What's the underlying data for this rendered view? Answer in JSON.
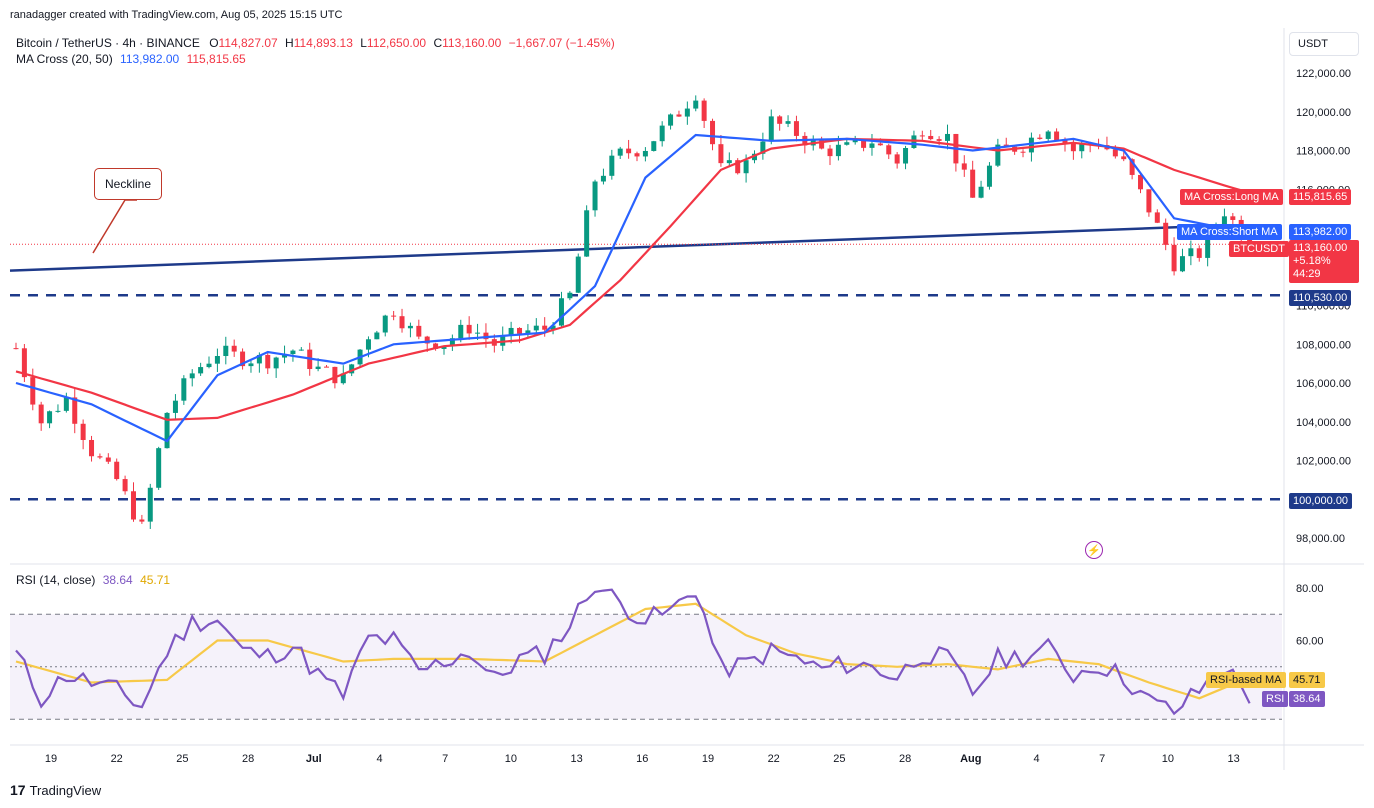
{
  "header": {
    "credit": "ranadagger created with TradingView.com, Aug 05, 2025 15:15 UTC",
    "symbol": "Bitcoin / TetherUS · 4h · BINANCE",
    "o_label": "O",
    "o_value": "114,827.07",
    "h_label": "H",
    "h_value": "114,893.13",
    "l_label": "L",
    "l_value": "112,650.00",
    "c_label": "C",
    "c_value": "113,160.00",
    "change": "−1,667.07 (−1.45%)",
    "ma_label": "MA Cross (20, 50)",
    "ma_short": "113,982.00",
    "ma_long": "115,815.65",
    "currency": "USDT"
  },
  "price_labels": {
    "long_ma_name": "MA Cross:Long MA",
    "long_ma_value": "115,815.65",
    "short_ma_name": "MA Cross:Short MA",
    "short_ma_value": "113,982.00",
    "symbol_tag": "BTCUSDT",
    "price": "113,160.00",
    "pct": "+5.18%",
    "countdown": "44:29",
    "level_1": "110,530.00",
    "level_2": "100,000.00"
  },
  "annotation": {
    "text": "Neckline"
  },
  "rsi_header": {
    "label": "RSI (14, close)",
    "rsi": "38.64",
    "ma": "45.71"
  },
  "rsi_labels": {
    "ma_name": "RSI-based MA",
    "ma_value": "45.71",
    "rsi_name": "RSI",
    "rsi_value": "38.64"
  },
  "footer": {
    "brand": "TradingView"
  },
  "colors": {
    "up": "#089981",
    "down": "#f23645",
    "short_ma": "#2962ff",
    "long_ma": "#f23645",
    "rsi": "#7e57c2",
    "rsi_ma": "#f7c948",
    "level": "#1e3a8a",
    "neckline": "#1e3a8a"
  },
  "chart_data": {
    "type": "candlestick",
    "price_axis": {
      "ticks": [
        98000,
        100000,
        102000,
        104000,
        106000,
        108000,
        110000,
        112000,
        114000,
        116000,
        118000,
        120000,
        122000
      ],
      "tick_labels": [
        "98,000.00",
        "100,000.00",
        "102,000.00",
        "104,000.00",
        "106,000.00",
        "108,000.00",
        "110,000.00",
        "112,000.00",
        "114,000.00",
        "116,000.00",
        "118,000.00",
        "120,000.00",
        "122,000.00"
      ]
    },
    "time_axis": {
      "labels": [
        "19",
        "22",
        "25",
        "28",
        "Jul",
        "4",
        "7",
        "10",
        "13",
        "16",
        "19",
        "22",
        "25",
        "28",
        "Aug",
        "4",
        "7",
        "10",
        "13"
      ]
    },
    "horizontal_levels": [
      110530,
      100000
    ],
    "neckline": {
      "start": 111800,
      "end": 114050
    },
    "last_price": 113160,
    "close_path": [
      {
        "x": 0,
        "y": 107800
      },
      {
        "x": 3,
        "y": 104000
      },
      {
        "x": 6,
        "y": 105200
      },
      {
        "x": 9,
        "y": 102500
      },
      {
        "x": 12,
        "y": 101000
      },
      {
        "x": 15,
        "y": 98500
      },
      {
        "x": 18,
        "y": 104500
      },
      {
        "x": 21,
        "y": 106500
      },
      {
        "x": 24,
        "y": 107600
      },
      {
        "x": 27,
        "y": 107300
      },
      {
        "x": 30,
        "y": 107200
      },
      {
        "x": 33,
        "y": 107700
      },
      {
        "x": 36,
        "y": 106700
      },
      {
        "x": 39,
        "y": 106200
      },
      {
        "x": 42,
        "y": 108500
      },
      {
        "x": 45,
        "y": 109800
      },
      {
        "x": 48,
        "y": 108200
      },
      {
        "x": 51,
        "y": 108100
      },
      {
        "x": 54,
        "y": 108900
      },
      {
        "x": 57,
        "y": 108000
      },
      {
        "x": 60,
        "y": 108600
      },
      {
        "x": 63,
        "y": 108800
      },
      {
        "x": 66,
        "y": 110500
      },
      {
        "x": 69,
        "y": 116500
      },
      {
        "x": 72,
        "y": 117800
      },
      {
        "x": 75,
        "y": 118200
      },
      {
        "x": 78,
        "y": 119500
      },
      {
        "x": 81,
        "y": 121000
      },
      {
        "x": 84,
        "y": 117000
      },
      {
        "x": 87,
        "y": 117300
      },
      {
        "x": 90,
        "y": 119500
      },
      {
        "x": 93,
        "y": 118900
      },
      {
        "x": 96,
        "y": 118000
      },
      {
        "x": 99,
        "y": 118100
      },
      {
        "x": 102,
        "y": 118500
      },
      {
        "x": 105,
        "y": 117500
      },
      {
        "x": 108,
        "y": 119200
      },
      {
        "x": 111,
        "y": 118700
      },
      {
        "x": 114,
        "y": 115500
      },
      {
        "x": 117,
        "y": 117900
      },
      {
        "x": 120,
        "y": 118300
      },
      {
        "x": 123,
        "y": 119300
      },
      {
        "x": 126,
        "y": 118000
      },
      {
        "x": 129,
        "y": 118500
      },
      {
        "x": 132,
        "y": 117300
      },
      {
        "x": 135,
        "y": 115000
      },
      {
        "x": 138,
        "y": 112200
      },
      {
        "x": 141,
        "y": 112700
      },
      {
        "x": 144,
        "y": 114900
      },
      {
        "x": 147,
        "y": 113200
      }
    ],
    "short_ma_path": [
      {
        "x": 0,
        "y": 106000
      },
      {
        "x": 9,
        "y": 104900
      },
      {
        "x": 18,
        "y": 103000
      },
      {
        "x": 24,
        "y": 106400
      },
      {
        "x": 30,
        "y": 107600
      },
      {
        "x": 39,
        "y": 107000
      },
      {
        "x": 45,
        "y": 108000
      },
      {
        "x": 54,
        "y": 108300
      },
      {
        "x": 63,
        "y": 108600
      },
      {
        "x": 69,
        "y": 111000
      },
      {
        "x": 75,
        "y": 116600
      },
      {
        "x": 81,
        "y": 118800
      },
      {
        "x": 90,
        "y": 118500
      },
      {
        "x": 99,
        "y": 118600
      },
      {
        "x": 108,
        "y": 118300
      },
      {
        "x": 114,
        "y": 118000
      },
      {
        "x": 120,
        "y": 118300
      },
      {
        "x": 126,
        "y": 118600
      },
      {
        "x": 132,
        "y": 118000
      },
      {
        "x": 138,
        "y": 114500
      },
      {
        "x": 144,
        "y": 114000
      },
      {
        "x": 147,
        "y": 113982
      }
    ],
    "long_ma_path": [
      {
        "x": 0,
        "y": 106600
      },
      {
        "x": 9,
        "y": 105500
      },
      {
        "x": 18,
        "y": 104100
      },
      {
        "x": 24,
        "y": 104200
      },
      {
        "x": 33,
        "y": 105400
      },
      {
        "x": 42,
        "y": 107000
      },
      {
        "x": 51,
        "y": 107900
      },
      {
        "x": 60,
        "y": 108200
      },
      {
        "x": 66,
        "y": 109000
      },
      {
        "x": 72,
        "y": 111300
      },
      {
        "x": 78,
        "y": 114100
      },
      {
        "x": 84,
        "y": 117000
      },
      {
        "x": 90,
        "y": 118100
      },
      {
        "x": 99,
        "y": 118600
      },
      {
        "x": 108,
        "y": 118500
      },
      {
        "x": 117,
        "y": 118000
      },
      {
        "x": 126,
        "y": 118400
      },
      {
        "x": 132,
        "y": 118100
      },
      {
        "x": 138,
        "y": 117000
      },
      {
        "x": 144,
        "y": 116200
      },
      {
        "x": 147,
        "y": 115816
      }
    ],
    "rsi": {
      "label": "RSI (14, close)",
      "ticks": [
        60,
        80
      ],
      "tick_labels": [
        "60.00",
        "80.00"
      ],
      "bands": [
        30,
        50,
        70
      ],
      "rsi_path": [
        {
          "x": 0,
          "y": 55
        },
        {
          "x": 3,
          "y": 38
        },
        {
          "x": 6,
          "y": 47
        },
        {
          "x": 9,
          "y": 44
        },
        {
          "x": 12,
          "y": 41
        },
        {
          "x": 15,
          "y": 35
        },
        {
          "x": 18,
          "y": 56
        },
        {
          "x": 21,
          "y": 67
        },
        {
          "x": 24,
          "y": 68
        },
        {
          "x": 27,
          "y": 56
        },
        {
          "x": 30,
          "y": 54
        },
        {
          "x": 33,
          "y": 58
        },
        {
          "x": 36,
          "y": 47
        },
        {
          "x": 39,
          "y": 39
        },
        {
          "x": 42,
          "y": 61
        },
        {
          "x": 45,
          "y": 60
        },
        {
          "x": 48,
          "y": 48
        },
        {
          "x": 51,
          "y": 52
        },
        {
          "x": 54,
          "y": 56
        },
        {
          "x": 57,
          "y": 45
        },
        {
          "x": 60,
          "y": 53
        },
        {
          "x": 63,
          "y": 55
        },
        {
          "x": 66,
          "y": 66
        },
        {
          "x": 69,
          "y": 82
        },
        {
          "x": 72,
          "y": 74
        },
        {
          "x": 75,
          "y": 68
        },
        {
          "x": 78,
          "y": 71
        },
        {
          "x": 81,
          "y": 80
        },
        {
          "x": 84,
          "y": 49
        },
        {
          "x": 87,
          "y": 51
        },
        {
          "x": 90,
          "y": 56
        },
        {
          "x": 93,
          "y": 53
        },
        {
          "x": 96,
          "y": 49
        },
        {
          "x": 99,
          "y": 51
        },
        {
          "x": 102,
          "y": 50
        },
        {
          "x": 105,
          "y": 46
        },
        {
          "x": 108,
          "y": 55
        },
        {
          "x": 111,
          "y": 53
        },
        {
          "x": 114,
          "y": 40
        },
        {
          "x": 117,
          "y": 53
        },
        {
          "x": 120,
          "y": 54
        },
        {
          "x": 123,
          "y": 57
        },
        {
          "x": 126,
          "y": 47
        },
        {
          "x": 129,
          "y": 51
        },
        {
          "x": 132,
          "y": 46
        },
        {
          "x": 135,
          "y": 37
        },
        {
          "x": 138,
          "y": 33
        },
        {
          "x": 141,
          "y": 41
        },
        {
          "x": 144,
          "y": 50
        },
        {
          "x": 147,
          "y": 38.6
        }
      ],
      "ma_path": [
        {
          "x": 0,
          "y": 52
        },
        {
          "x": 9,
          "y": 44
        },
        {
          "x": 18,
          "y": 45
        },
        {
          "x": 24,
          "y": 60
        },
        {
          "x": 30,
          "y": 60
        },
        {
          "x": 39,
          "y": 52
        },
        {
          "x": 45,
          "y": 53
        },
        {
          "x": 54,
          "y": 53
        },
        {
          "x": 63,
          "y": 52
        },
        {
          "x": 69,
          "y": 62
        },
        {
          "x": 75,
          "y": 72
        },
        {
          "x": 81,
          "y": 74
        },
        {
          "x": 87,
          "y": 62
        },
        {
          "x": 93,
          "y": 55
        },
        {
          "x": 99,
          "y": 51
        },
        {
          "x": 105,
          "y": 50
        },
        {
          "x": 111,
          "y": 51
        },
        {
          "x": 117,
          "y": 49
        },
        {
          "x": 123,
          "y": 53
        },
        {
          "x": 129,
          "y": 51
        },
        {
          "x": 135,
          "y": 44
        },
        {
          "x": 141,
          "y": 38
        },
        {
          "x": 144,
          "y": 42
        },
        {
          "x": 147,
          "y": 45.71
        }
      ],
      "last_rsi": 38.64,
      "last_ma": 45.71
    }
  }
}
